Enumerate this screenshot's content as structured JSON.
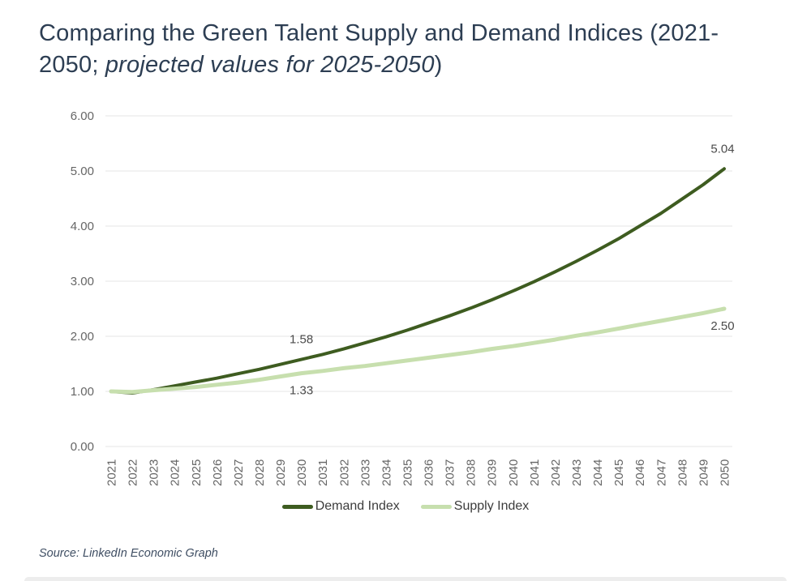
{
  "page": {
    "title_line1": "Comparing the Green Talent Supply and Demand Indices (2021-",
    "title_line2_prefix": "2050; ",
    "title_line2_italic": "projected values for 2025-2050",
    "title_line2_suffix": ")",
    "source": "Source: LinkedIn Economic Graph"
  },
  "legend": {
    "items": [
      {
        "label": "Demand Index",
        "color": "#3e5c20"
      },
      {
        "label": "Supply Index",
        "color": "#c7dfae"
      }
    ]
  },
  "colors": {
    "title": "#2d3e53",
    "axis_label": "#666666",
    "gridline": "#e4e4e4",
    "data_label": "#4a4a4a",
    "source": "#3f4e63"
  },
  "chart_data": {
    "type": "line",
    "title": "Comparing the Green Talent Supply and Demand Indices (2021-2050; projected values for 2025-2050)",
    "xlabel": "",
    "ylabel": "",
    "ylim": [
      0,
      6
    ],
    "yticks": [
      "0.00",
      "1.00",
      "2.00",
      "3.00",
      "4.00",
      "5.00",
      "6.00"
    ],
    "grid": "horizontal",
    "legend_position": "bottom",
    "x": [
      2021,
      2022,
      2023,
      2024,
      2025,
      2026,
      2027,
      2028,
      2029,
      2030,
      2031,
      2032,
      2033,
      2034,
      2035,
      2036,
      2037,
      2038,
      2039,
      2040,
      2041,
      2042,
      2043,
      2044,
      2045,
      2046,
      2047,
      2048,
      2049,
      2050
    ],
    "series": [
      {
        "name": "Demand Index",
        "color": "#3e5c20",
        "stroke_width": 4,
        "values": [
          1.0,
          0.97,
          1.03,
          1.1,
          1.17,
          1.24,
          1.32,
          1.4,
          1.49,
          1.58,
          1.67,
          1.77,
          1.88,
          1.99,
          2.11,
          2.24,
          2.37,
          2.51,
          2.66,
          2.82,
          2.99,
          3.17,
          3.36,
          3.56,
          3.77,
          4.0,
          4.23,
          4.49,
          4.75,
          5.04
        ]
      },
      {
        "name": "Supply Index",
        "color": "#c7dfae",
        "stroke_width": 5,
        "values": [
          1.0,
          0.99,
          1.02,
          1.05,
          1.08,
          1.12,
          1.16,
          1.21,
          1.27,
          1.33,
          1.37,
          1.42,
          1.46,
          1.51,
          1.56,
          1.61,
          1.66,
          1.71,
          1.77,
          1.82,
          1.88,
          1.94,
          2.01,
          2.07,
          2.14,
          2.21,
          2.28,
          2.35,
          2.42,
          2.5
        ]
      }
    ],
    "annotations": [
      {
        "series": 0,
        "year": 2030,
        "label": "1.58",
        "position": "above"
      },
      {
        "series": 1,
        "year": 2030,
        "label": "1.33",
        "position": "below"
      },
      {
        "series": 0,
        "year": 2050,
        "label": "5.04",
        "position": "above"
      },
      {
        "series": 1,
        "year": 2050,
        "label": "2.50",
        "position": "below"
      }
    ]
  }
}
